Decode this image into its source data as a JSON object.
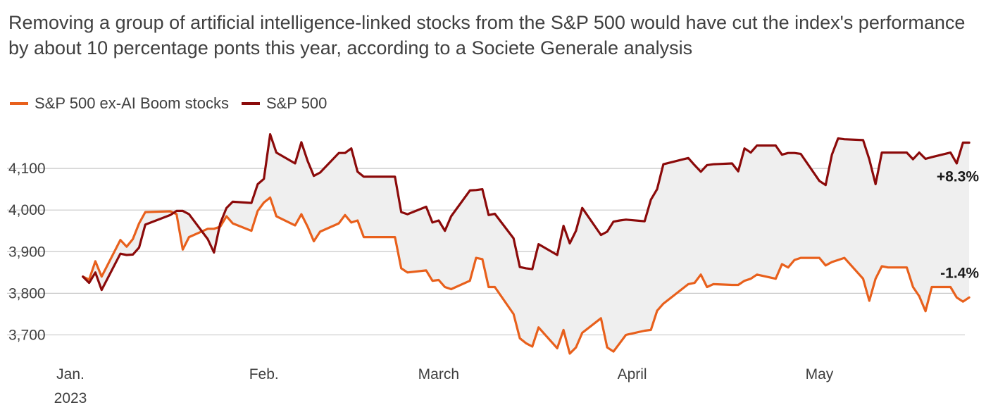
{
  "chart_data": {
    "type": "line",
    "title": "Removing a group of artificial intelligence-linked stocks from the S&P 500 would have cut the index's performance by about 10 percentage ponts this year, according to a Societe Generale analysis",
    "colors": {
      "ex_ai": "#e8601c",
      "sp500": "#8b0a0a",
      "band": "#efefef",
      "grid": "#c9c9c9"
    },
    "ylim": [
      3650,
      4200
    ],
    "yticks": [
      {
        "value": 3700,
        "label": "3,700"
      },
      {
        "value": 3800,
        "label": "3,800"
      },
      {
        "value": 3900,
        "label": "3,900"
      },
      {
        "value": 4000,
        "label": "4,000"
      },
      {
        "value": 4100,
        "label": "4,100"
      }
    ],
    "xlim": [
      "2023-01-01",
      "2023-05-26"
    ],
    "xticks": [
      {
        "date": "2023-01-01",
        "label": "Jan.",
        "sublabel": "2023"
      },
      {
        "date": "2023-02-01",
        "label": "Feb.",
        "sublabel": ""
      },
      {
        "date": "2023-03-01",
        "label": "March",
        "sublabel": ""
      },
      {
        "date": "2023-04-01",
        "label": "April",
        "sublabel": ""
      },
      {
        "date": "2023-05-01",
        "label": "May",
        "sublabel": ""
      }
    ],
    "legend": {
      "placement": "top-left"
    },
    "x": [
      "2023-01-03",
      "2023-01-04",
      "2023-01-05",
      "2023-01-06",
      "2023-01-09",
      "2023-01-10",
      "2023-01-11",
      "2023-01-12",
      "2023-01-13",
      "2023-01-17",
      "2023-01-18",
      "2023-01-19",
      "2023-01-20",
      "2023-01-23",
      "2023-01-24",
      "2023-01-25",
      "2023-01-26",
      "2023-01-27",
      "2023-01-30",
      "2023-01-31",
      "2023-02-01",
      "2023-02-02",
      "2023-02-03",
      "2023-02-06",
      "2023-02-07",
      "2023-02-08",
      "2023-02-09",
      "2023-02-10",
      "2023-02-13",
      "2023-02-14",
      "2023-02-15",
      "2023-02-16",
      "2023-02-17",
      "2023-02-21",
      "2023-02-22",
      "2023-02-23",
      "2023-02-24",
      "2023-02-27",
      "2023-02-28",
      "2023-03-01",
      "2023-03-02",
      "2023-03-03",
      "2023-03-06",
      "2023-03-07",
      "2023-03-08",
      "2023-03-09",
      "2023-03-10",
      "2023-03-13",
      "2023-03-14",
      "2023-03-15",
      "2023-03-16",
      "2023-03-17",
      "2023-03-20",
      "2023-03-21",
      "2023-03-22",
      "2023-03-23",
      "2023-03-24",
      "2023-03-27",
      "2023-03-28",
      "2023-03-29",
      "2023-03-30",
      "2023-03-31",
      "2023-04-03",
      "2023-04-04",
      "2023-04-05",
      "2023-04-06",
      "2023-04-10",
      "2023-04-11",
      "2023-04-12",
      "2023-04-13",
      "2023-04-14",
      "2023-04-17",
      "2023-04-18",
      "2023-04-19",
      "2023-04-20",
      "2023-04-21",
      "2023-04-24",
      "2023-04-25",
      "2023-04-26",
      "2023-04-27",
      "2023-04-28",
      "2023-05-01",
      "2023-05-02",
      "2023-05-03",
      "2023-05-04",
      "2023-05-05",
      "2023-05-08",
      "2023-05-09",
      "2023-05-10",
      "2023-05-11",
      "2023-05-12",
      "2023-05-15",
      "2023-05-16",
      "2023-05-17",
      "2023-05-18",
      "2023-05-19",
      "2023-05-22",
      "2023-05-23",
      "2023-05-24",
      "2023-05-25"
    ],
    "series": [
      {
        "name": "S&P 500 ex-AI Boom stocks",
        "color_key": "ex_ai",
        "end_label": "-1.4%",
        "values": [
          3840,
          3833,
          3877,
          3840,
          3928,
          3912,
          3930,
          3968,
          3995,
          3997,
          3990,
          3905,
          3935,
          3955,
          3955,
          3960,
          3985,
          3968,
          3950,
          3998,
          4018,
          4030,
          3985,
          3963,
          3990,
          3960,
          3925,
          3948,
          3968,
          3988,
          3970,
          3975,
          3935,
          3935,
          3935,
          3860,
          3850,
          3855,
          3830,
          3832,
          3815,
          3810,
          3830,
          3885,
          3882,
          3815,
          3815,
          3750,
          3692,
          3680,
          3672,
          3718,
          3668,
          3712,
          3655,
          3670,
          3705,
          3740,
          3670,
          3660,
          3680,
          3700,
          3710,
          3712,
          3758,
          3775,
          3822,
          3825,
          3845,
          3815,
          3822,
          3820,
          3820,
          3830,
          3835,
          3845,
          3835,
          3870,
          3862,
          3880,
          3885,
          3885,
          3867,
          3875,
          3880,
          3885,
          3835,
          3782,
          3835,
          3865,
          3862,
          3862,
          3815,
          3793,
          3757,
          3815,
          3815,
          3790,
          3780,
          3790
        ]
      },
      {
        "name": "S&P 500",
        "color_key": "sp500",
        "end_label": "+8.3%",
        "values": [
          3840,
          3825,
          3850,
          3808,
          3895,
          3892,
          3893,
          3910,
          3965,
          3988,
          3998,
          3998,
          3990,
          3930,
          3898,
          3968,
          4005,
          4020,
          4017,
          4062,
          4075,
          4182,
          4138,
          4112,
          4163,
          4118,
          4082,
          4090,
          4137,
          4137,
          4148,
          4092,
          4080,
          4080,
          4080,
          3995,
          3990,
          4008,
          3970,
          3975,
          3950,
          3985,
          4047,
          4048,
          4050,
          3988,
          3991,
          3932,
          3863,
          3860,
          3858,
          3918,
          3892,
          3962,
          3920,
          3950,
          4005,
          3940,
          3948,
          3972,
          3975,
          3977,
          3973,
          4025,
          4050,
          4110,
          4125,
          4108,
          4092,
          4108,
          4110,
          4112,
          4093,
          4148,
          4138,
          4155,
          4155,
          4133,
          4137,
          4137,
          4135,
          4070,
          4060,
          4133,
          4172,
          4170,
          4168,
          4122,
          4062,
          4138,
          4138,
          4138,
          4122,
          4138,
          4123,
          4127,
          4138,
          4112,
          4162,
          4162
        ]
      }
    ]
  }
}
